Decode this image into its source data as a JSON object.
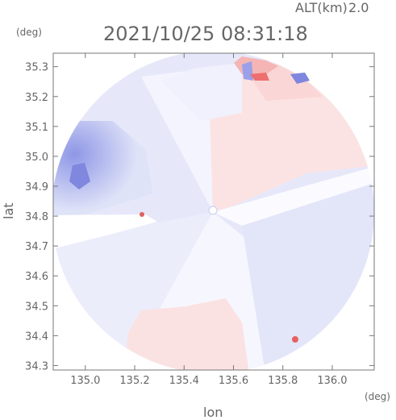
{
  "header": {
    "alt_label": "ALT(km)",
    "alt_value": "2.0",
    "datetime": "2021/10/25 08:31:18",
    "y_unit": "(deg)",
    "x_unit": "(deg)"
  },
  "chart_data": {
    "type": "heatmap",
    "xlabel": "lon",
    "ylabel": "lat",
    "xlim": [
      134.87,
      136.17
    ],
    "ylim": [
      34.285,
      35.345
    ],
    "x_ticks": [
      135.0,
      135.2,
      135.4,
      135.6,
      135.8,
      136.0
    ],
    "x_tick_labels": [
      "135.0",
      "135.2",
      "135.4",
      "135.6",
      "135.8",
      "136.0"
    ],
    "y_ticks": [
      34.3,
      34.4,
      34.5,
      34.6,
      34.7,
      34.8,
      34.9,
      35.0,
      35.1,
      35.2,
      35.3
    ],
    "y_tick_labels": [
      "34.3",
      "34.4",
      "34.5",
      "34.6",
      "34.7",
      "34.8",
      "34.9",
      "35.0",
      "35.1",
      "35.2",
      "35.3"
    ],
    "radar_center": {
      "lon": 135.53,
      "lat": 34.81
    },
    "colors": {
      "approaching_strong": "#8f97e6",
      "approaching_light": "#dfe3f8",
      "receding_light": "#fbe0e0",
      "receding_strong": "#f07575",
      "near_zero": "#ffffff"
    }
  }
}
